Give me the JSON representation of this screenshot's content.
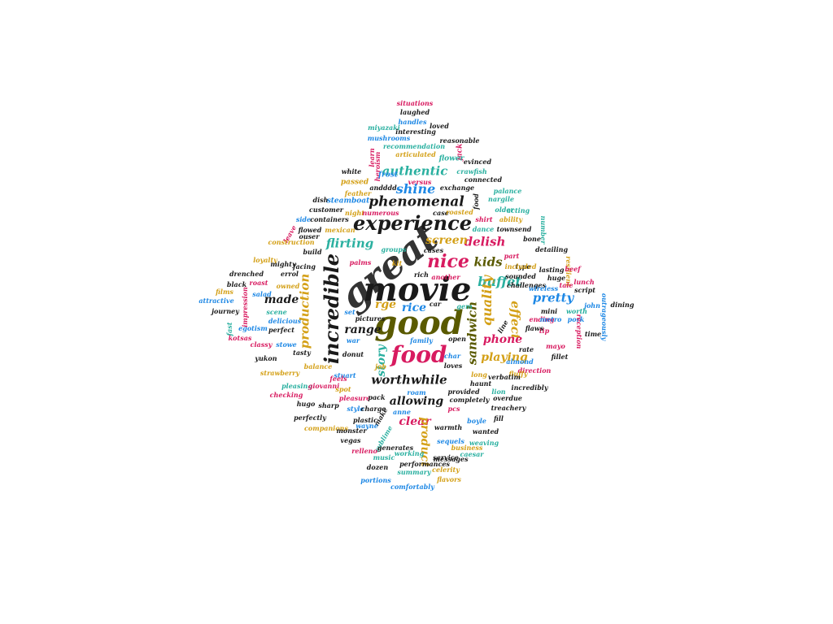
{
  "palette": {
    "black": "#1a1a1a",
    "magenta": "#d81b60",
    "blue": "#1e88e5",
    "gold": "#d4a017",
    "teal": "#2ab0a0",
    "olive": "#5a5a00",
    "dark": "#333333"
  },
  "words": [
    {
      "t": "great",
      "c": "dark",
      "s": 46
    },
    {
      "t": "movie",
      "c": "black",
      "s": 40
    },
    {
      "t": "good",
      "c": "olive",
      "s": 40
    },
    {
      "t": "experience",
      "c": "black",
      "s": 24
    },
    {
      "t": "incredible",
      "c": "black",
      "s": 24
    },
    {
      "t": "food",
      "c": "magenta",
      "s": 28
    },
    {
      "t": "nice",
      "c": "magenta",
      "s": 22
    },
    {
      "t": "phenomenal",
      "c": "black",
      "s": 17
    },
    {
      "t": "authentic",
      "c": "teal",
      "s": 15
    },
    {
      "t": "shine",
      "c": "blue",
      "s": 16
    },
    {
      "t": "flirting",
      "c": "teal",
      "s": 15
    },
    {
      "t": "delish",
      "c": "magenta",
      "s": 15
    },
    {
      "t": "kids",
      "c": "olive",
      "s": 15
    },
    {
      "t": "buffet",
      "c": "teal",
      "s": 16
    },
    {
      "t": "screen",
      "c": "gold",
      "s": 14
    },
    {
      "t": "quality",
      "c": "gold",
      "s": 16
    },
    {
      "t": "production",
      "c": "gold",
      "s": 15
    },
    {
      "t": "made",
      "c": "black",
      "s": 14
    },
    {
      "t": "rge",
      "c": "gold",
      "s": 14
    },
    {
      "t": "rice",
      "c": "blue",
      "s": 14
    },
    {
      "t": "effect",
      "c": "gold",
      "s": 15
    },
    {
      "t": "pretty",
      "c": "blue",
      "s": 15
    },
    {
      "t": "range",
      "c": "black",
      "s": 14
    },
    {
      "t": "sandwich",
      "c": "olive",
      "s": 15
    },
    {
      "t": "phone",
      "c": "magenta",
      "s": 14
    },
    {
      "t": "story",
      "c": "teal",
      "s": 14
    },
    {
      "t": "playing",
      "c": "gold",
      "s": 14
    },
    {
      "t": "worthwhile",
      "c": "black",
      "s": 15
    },
    {
      "t": "allowing",
      "c": "black",
      "s": 14
    },
    {
      "t": "clear",
      "c": "magenta",
      "s": 14
    },
    {
      "t": "product",
      "c": "gold",
      "s": 14
    },
    {
      "t": "situations",
      "c": "magenta",
      "s": 8
    },
    {
      "t": "laughed",
      "c": "black",
      "s": 8
    },
    {
      "t": "handles",
      "c": "blue",
      "s": 8
    },
    {
      "t": "miyazaki",
      "c": "teal",
      "s": 8
    },
    {
      "t": "loved",
      "c": "black",
      "s": 8
    },
    {
      "t": "interesting",
      "c": "black",
      "s": 8
    },
    {
      "t": "mushrooms",
      "c": "blue",
      "s": 8
    },
    {
      "t": "reasonable",
      "c": "black",
      "s": 8
    },
    {
      "t": "recommendation",
      "c": "teal",
      "s": 8
    },
    {
      "t": "jack",
      "c": "magenta",
      "s": 9
    },
    {
      "t": "articulated",
      "c": "gold",
      "s": 8
    },
    {
      "t": "learn",
      "c": "magenta",
      "s": 8
    },
    {
      "t": "flower",
      "c": "teal",
      "s": 9
    },
    {
      "t": "evinced",
      "c": "black",
      "s": 8
    },
    {
      "t": "heroism",
      "c": "magenta",
      "s": 8
    },
    {
      "t": "crawfish",
      "c": "teal",
      "s": 8
    },
    {
      "t": "white",
      "c": "black",
      "s": 8
    },
    {
      "t": "frost",
      "c": "blue",
      "s": 9
    },
    {
      "t": "versus",
      "c": "magenta",
      "s": 8
    },
    {
      "t": "connected",
      "c": "black",
      "s": 8
    },
    {
      "t": "passed",
      "c": "gold",
      "s": 9
    },
    {
      "t": "andddd",
      "c": "black",
      "s": 8
    },
    {
      "t": "exchange",
      "c": "black",
      "s": 8
    },
    {
      "t": "feather",
      "c": "gold",
      "s": 8
    },
    {
      "t": "food",
      "c": "black",
      "s": 8
    },
    {
      "t": "palance",
      "c": "teal",
      "s": 8
    },
    {
      "t": "dish",
      "c": "black",
      "s": 8
    },
    {
      "t": "steamboat",
      "c": "blue",
      "s": 9
    },
    {
      "t": "nargile",
      "c": "teal",
      "s": 8
    },
    {
      "t": "case",
      "c": "black",
      "s": 8
    },
    {
      "t": "customer",
      "c": "black",
      "s": 8
    },
    {
      "t": "night",
      "c": "gold",
      "s": 8
    },
    {
      "t": "numerous",
      "c": "magenta",
      "s": 8
    },
    {
      "t": "roasted",
      "c": "gold",
      "s": 8
    },
    {
      "t": "older",
      "c": "teal",
      "s": 8
    },
    {
      "t": "acting",
      "c": "teal",
      "s": 8
    },
    {
      "t": "side",
      "c": "blue",
      "s": 8
    },
    {
      "t": "containers",
      "c": "black",
      "s": 8
    },
    {
      "t": "shirt",
      "c": "magenta",
      "s": 8
    },
    {
      "t": "ability",
      "c": "gold",
      "s": 8
    },
    {
      "t": "leave",
      "c": "magenta",
      "s": 8
    },
    {
      "t": "flowed",
      "c": "black",
      "s": 8
    },
    {
      "t": "mexican",
      "c": "gold",
      "s": 8
    },
    {
      "t": "dance",
      "c": "teal",
      "s": 8
    },
    {
      "t": "townsend",
      "c": "black",
      "s": 8
    },
    {
      "t": "number",
      "c": "teal",
      "s": 8
    },
    {
      "t": "ouser",
      "c": "black",
      "s": 8
    },
    {
      "t": "construction",
      "c": "gold",
      "s": 8
    },
    {
      "t": "groups",
      "c": "teal",
      "s": 8
    },
    {
      "t": "bone",
      "c": "black",
      "s": 8
    },
    {
      "t": "build",
      "c": "black",
      "s": 8
    },
    {
      "t": "kit",
      "c": "gold",
      "s": 8
    },
    {
      "t": "cases",
      "c": "black",
      "s": 8
    },
    {
      "t": "part",
      "c": "magenta",
      "s": 8
    },
    {
      "t": "type",
      "c": "black",
      "s": 8
    },
    {
      "t": "detailing",
      "c": "black",
      "s": 8
    },
    {
      "t": "loyalty",
      "c": "gold",
      "s": 8
    },
    {
      "t": "mighty",
      "c": "black",
      "s": 8
    },
    {
      "t": "palms",
      "c": "magenta",
      "s": 8
    },
    {
      "t": "resilient",
      "c": "gold",
      "s": 8
    },
    {
      "t": "facing",
      "c": "black",
      "s": 8
    },
    {
      "t": "included",
      "c": "gold",
      "s": 8
    },
    {
      "t": "lasting",
      "c": "black",
      "s": 8
    },
    {
      "t": "drenched",
      "c": "black",
      "s": 8
    },
    {
      "t": "errol",
      "c": "black",
      "s": 8
    },
    {
      "t": "rich",
      "c": "black",
      "s": 8
    },
    {
      "t": "sounded",
      "c": "black",
      "s": 8
    },
    {
      "t": "huge",
      "c": "black",
      "s": 8
    },
    {
      "t": "beef",
      "c": "magenta",
      "s": 8
    },
    {
      "t": "roast",
      "c": "magenta",
      "s": 8
    },
    {
      "t": "another",
      "c": "magenta",
      "s": 8
    },
    {
      "t": "challenges",
      "c": "black",
      "s": 8
    },
    {
      "t": "tale",
      "c": "magenta",
      "s": 8
    },
    {
      "t": "lunch",
      "c": "magenta",
      "s": 8
    },
    {
      "t": "black",
      "c": "black",
      "s": 8
    },
    {
      "t": "owned",
      "c": "gold",
      "s": 8
    },
    {
      "t": "films",
      "c": "gold",
      "s": 8
    },
    {
      "t": "salad",
      "c": "blue",
      "s": 8
    },
    {
      "t": "wireless",
      "c": "blue",
      "s": 8
    },
    {
      "t": "script",
      "c": "black",
      "s": 8
    },
    {
      "t": "outrageously",
      "c": "blue",
      "s": 8
    },
    {
      "t": "attractive",
      "c": "blue",
      "s": 8
    },
    {
      "t": "impression",
      "c": "magenta",
      "s": 8
    },
    {
      "t": "car",
      "c": "black",
      "s": 8
    },
    {
      "t": "gem",
      "c": "teal",
      "s": 8
    },
    {
      "t": "mini",
      "c": "black",
      "s": 8
    },
    {
      "t": "john",
      "c": "blue",
      "s": 8
    },
    {
      "t": "dining",
      "c": "black",
      "s": 8
    },
    {
      "t": "journey",
      "c": "black",
      "s": 8
    },
    {
      "t": "scene",
      "c": "teal",
      "s": 8
    },
    {
      "t": "set",
      "c": "blue",
      "s": 8
    },
    {
      "t": "ending",
      "c": "magenta",
      "s": 8
    },
    {
      "t": "worth",
      "c": "teal",
      "s": 8
    },
    {
      "t": "pork",
      "c": "blue",
      "s": 8
    },
    {
      "t": "fast",
      "c": "teal",
      "s": 8
    },
    {
      "t": "egotism",
      "c": "blue",
      "s": 8
    },
    {
      "t": "delicious",
      "c": "blue",
      "s": 8
    },
    {
      "t": "pictures",
      "c": "black",
      "s": 8
    },
    {
      "t": "tip",
      "c": "magenta",
      "s": 8
    },
    {
      "t": "line",
      "c": "black",
      "s": 8
    },
    {
      "t": "metro",
      "c": "blue",
      "s": 8
    },
    {
      "t": "flaws",
      "c": "black",
      "s": 8
    },
    {
      "t": "reception",
      "c": "magenta",
      "s": 8
    },
    {
      "t": "time",
      "c": "black",
      "s": 8
    },
    {
      "t": "perfect",
      "c": "black",
      "s": 8
    },
    {
      "t": "war",
      "c": "blue",
      "s": 8
    },
    {
      "t": "open",
      "c": "black",
      "s": 8
    },
    {
      "t": "mayo",
      "c": "magenta",
      "s": 8
    },
    {
      "t": "kotsas",
      "c": "magenta",
      "s": 8
    },
    {
      "t": "classy",
      "c": "magenta",
      "s": 8
    },
    {
      "t": "stowe",
      "c": "blue",
      "s": 8
    },
    {
      "t": "family",
      "c": "blue",
      "s": 8
    },
    {
      "t": "rate",
      "c": "black",
      "s": 8
    },
    {
      "t": "tasty",
      "c": "black",
      "s": 8
    },
    {
      "t": "donut",
      "c": "black",
      "s": 8
    },
    {
      "t": "char",
      "c": "blue",
      "s": 8
    },
    {
      "t": "almond",
      "c": "blue",
      "s": 8
    },
    {
      "t": "direction",
      "c": "magenta",
      "s": 8
    },
    {
      "t": "fillet",
      "c": "black",
      "s": 8
    },
    {
      "t": "yukon",
      "c": "black",
      "s": 8
    },
    {
      "t": "job",
      "c": "gold",
      "s": 8
    },
    {
      "t": "loves",
      "c": "black",
      "s": 8
    },
    {
      "t": "balance",
      "c": "gold",
      "s": 8
    },
    {
      "t": "strawberry",
      "c": "gold",
      "s": 8
    },
    {
      "t": "stuart",
      "c": "blue",
      "s": 8
    },
    {
      "t": "fluffy",
      "c": "gold",
      "s": 8
    },
    {
      "t": "long",
      "c": "gold",
      "s": 8
    },
    {
      "t": "verbatim",
      "c": "black",
      "s": 8
    },
    {
      "t": "pleasing",
      "c": "teal",
      "s": 8
    },
    {
      "t": "giovanni",
      "c": "magenta",
      "s": 8
    },
    {
      "t": "feels",
      "c": "magenta",
      "s": 8
    },
    {
      "t": "haunt",
      "c": "black",
      "s": 8
    },
    {
      "t": "incredibly",
      "c": "black",
      "s": 8
    },
    {
      "t": "checking",
      "c": "magenta",
      "s": 8
    },
    {
      "t": "pleasure",
      "c": "magenta",
      "s": 8
    },
    {
      "t": "pack",
      "c": "black",
      "s": 8
    },
    {
      "t": "roam",
      "c": "blue",
      "s": 8
    },
    {
      "t": "provided",
      "c": "black",
      "s": 8
    },
    {
      "t": "lion",
      "c": "teal",
      "s": 8
    },
    {
      "t": "overdue",
      "c": "black",
      "s": 8
    },
    {
      "t": "hugo",
      "c": "black",
      "s": 8
    },
    {
      "t": "sharp",
      "c": "black",
      "s": 8
    },
    {
      "t": "spot",
      "c": "gold",
      "s": 8
    },
    {
      "t": "completely",
      "c": "black",
      "s": 8
    },
    {
      "t": "treachery",
      "c": "black",
      "s": 8
    },
    {
      "t": "perfectly",
      "c": "black",
      "s": 8
    },
    {
      "t": "plastic",
      "c": "black",
      "s": 8
    },
    {
      "t": "style",
      "c": "blue",
      "s": 8
    },
    {
      "t": "charge",
      "c": "black",
      "s": 8
    },
    {
      "t": "pcs",
      "c": "magenta",
      "s": 8
    },
    {
      "t": "fill",
      "c": "black",
      "s": 8
    },
    {
      "t": "make",
      "c": "black",
      "s": 8
    },
    {
      "t": "boyle",
      "c": "blue",
      "s": 8
    },
    {
      "t": "wayne",
      "c": "blue",
      "s": 8
    },
    {
      "t": "anne",
      "c": "blue",
      "s": 8
    },
    {
      "t": "companions",
      "c": "gold",
      "s": 8
    },
    {
      "t": "warmth",
      "c": "black",
      "s": 8
    },
    {
      "t": "wanted",
      "c": "black",
      "s": 8
    },
    {
      "t": "vegas",
      "c": "black",
      "s": 8
    },
    {
      "t": "monster",
      "c": "black",
      "s": 8
    },
    {
      "t": "sublime",
      "c": "teal",
      "s": 8
    },
    {
      "t": "sequels",
      "c": "blue",
      "s": 8
    },
    {
      "t": "weaving",
      "c": "teal",
      "s": 8
    },
    {
      "t": "generates",
      "c": "black",
      "s": 8
    },
    {
      "t": "messages",
      "c": "black",
      "s": 8
    },
    {
      "t": "business",
      "c": "gold",
      "s": 8
    },
    {
      "t": "relleno",
      "c": "magenta",
      "s": 8
    },
    {
      "t": "working",
      "c": "teal",
      "s": 8
    },
    {
      "t": "caesar",
      "c": "teal",
      "s": 8
    },
    {
      "t": "music",
      "c": "teal",
      "s": 8
    },
    {
      "t": "service",
      "c": "black",
      "s": 8
    },
    {
      "t": "dozen",
      "c": "black",
      "s": 8
    },
    {
      "t": "performances",
      "c": "black",
      "s": 8
    },
    {
      "t": "celerity",
      "c": "gold",
      "s": 8
    },
    {
      "t": "summary",
      "c": "teal",
      "s": 8
    },
    {
      "t": "flavors",
      "c": "gold",
      "s": 8
    },
    {
      "t": "portions",
      "c": "blue",
      "s": 8
    },
    {
      "t": "comfortably",
      "c": "blue",
      "s": 8
    }
  ]
}
